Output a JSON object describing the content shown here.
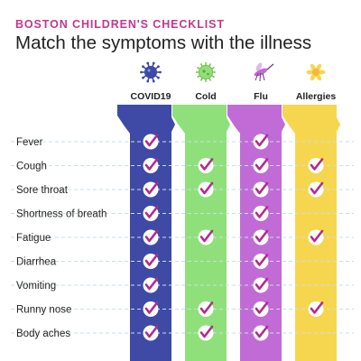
{
  "header": {
    "kicker": "BOSTON CHILDREN'S CHECKLIST",
    "title": "Match the symptoms with the illness"
  },
  "illnesses": [
    {
      "id": "covid19",
      "label": "COVID19",
      "color": "#3f4aa6",
      "icon": "virus-icon"
    },
    {
      "id": "cold",
      "label": "Cold",
      "color": "#8fe07a",
      "icon": "germ-icon"
    },
    {
      "id": "flu",
      "label": "Flu",
      "color": "#c16bd6",
      "icon": "mosquito-icon"
    },
    {
      "id": "allergies",
      "label": "Allergies",
      "color": "#f7d64f",
      "icon": "pollen-icon"
    }
  ],
  "colors": {
    "check_mark": "#b22a8f",
    "check_circle": "#ffffff",
    "guide_line": "#c8dfe8",
    "text": "#222222",
    "accent": "#c2378f"
  },
  "symptoms": [
    {
      "label": "Fever",
      "checks": [
        true,
        false,
        true,
        false
      ]
    },
    {
      "label": "Cough",
      "checks": [
        true,
        true,
        true,
        true
      ]
    },
    {
      "label": "Sore throat",
      "checks": [
        true,
        true,
        true,
        true
      ]
    },
    {
      "label": "Shortness of breath",
      "checks": [
        true,
        false,
        true,
        false
      ]
    },
    {
      "label": "Fatigue",
      "checks": [
        true,
        true,
        true,
        true
      ]
    },
    {
      "label": "Diarrhea",
      "checks": [
        true,
        false,
        true,
        false
      ]
    },
    {
      "label": "Vomiting",
      "checks": [
        true,
        false,
        true,
        false
      ]
    },
    {
      "label": "Runny nose",
      "checks": [
        true,
        true,
        true,
        true
      ]
    },
    {
      "label": "Body aches",
      "checks": [
        true,
        true,
        true,
        false
      ]
    }
  ]
}
